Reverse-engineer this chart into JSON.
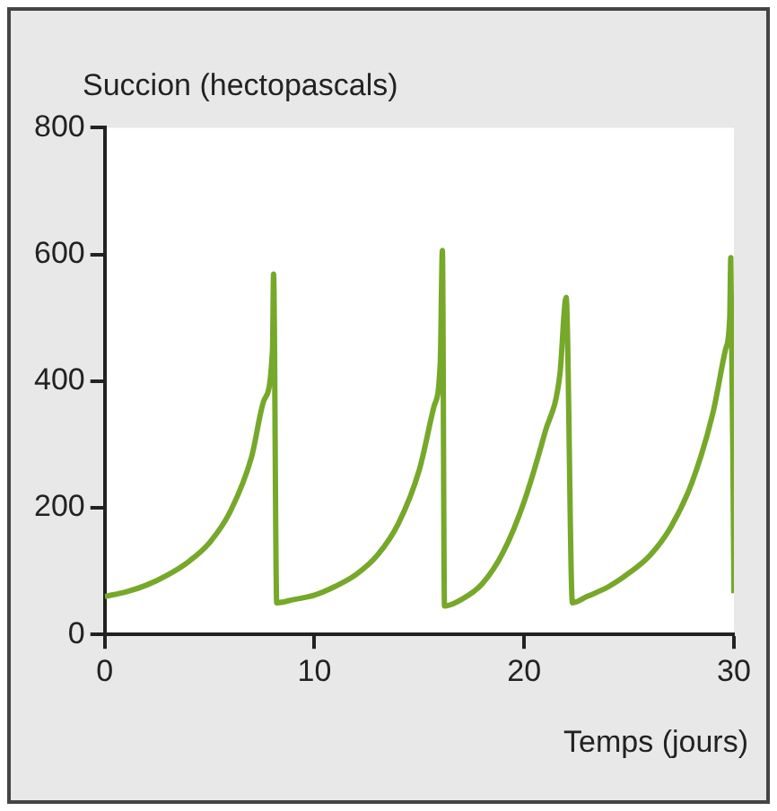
{
  "chart_data": {
    "type": "line",
    "ylabel": "Succion (hectopascals)",
    "xlabel": "Temps (jours)",
    "xlim": [
      0,
      30
    ],
    "xticks": [
      0,
      10,
      20,
      30
    ],
    "ylim": [
      0,
      800
    ],
    "yticks": [
      0,
      200,
      400,
      600,
      800
    ],
    "grid": false,
    "legend": false,
    "marker": "none",
    "line_style": "solid",
    "series": [
      {
        "color": "#76a82a",
        "x": [
          0,
          1,
          2,
          3,
          4,
          5,
          6,
          7,
          7.6,
          8,
          8.05,
          8.2,
          9,
          10,
          11,
          12,
          13,
          14,
          15,
          15.7,
          16,
          16.1,
          16.2,
          17,
          18,
          19,
          20,
          21,
          21.7,
          22,
          22.3,
          23,
          24,
          25,
          26,
          27,
          28,
          29,
          29.6,
          29.8,
          29.85,
          30
        ],
        "values": [
          60,
          67,
          78,
          94,
          115,
          145,
          195,
          280,
          370,
          450,
          569,
          50,
          55,
          62,
          76,
          95,
          125,
          175,
          260,
          360,
          430,
          606,
          45,
          55,
          80,
          130,
          210,
          320,
          410,
          532,
          50,
          60,
          75,
          97,
          125,
          170,
          240,
          350,
          450,
          500,
          595,
          65
        ]
      }
    ]
  }
}
